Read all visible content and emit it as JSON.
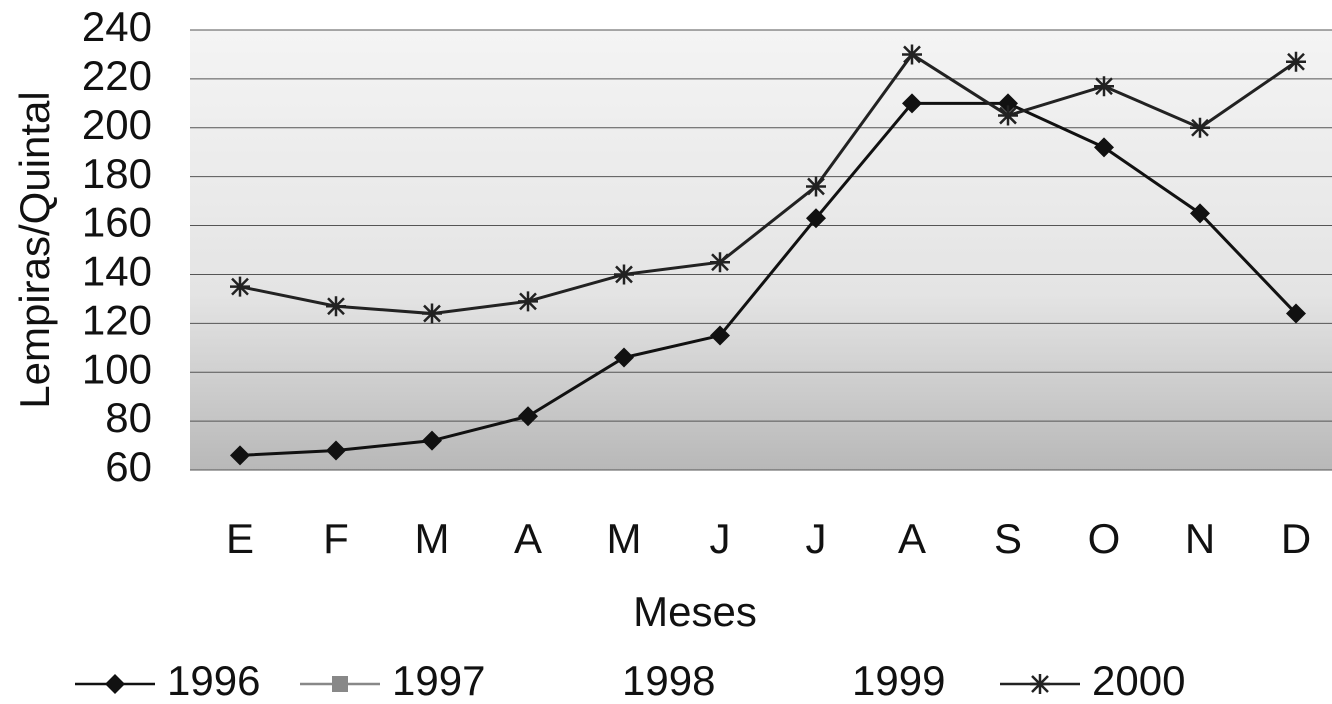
{
  "chart_data": {
    "type": "line",
    "y_label": "Lempiras/Quintal",
    "x_label": "Meses",
    "categories": [
      "E",
      "F",
      "M",
      "A",
      "M",
      "J",
      "J",
      "A",
      "S",
      "O",
      "N",
      "D"
    ],
    "series": [
      {
        "name": "1996",
        "color": "#111111",
        "marker": "diamond",
        "values": [
          66,
          68,
          72,
          82,
          106,
          115,
          163,
          210,
          210,
          192,
          165,
          124
        ]
      },
      {
        "name": "1997",
        "color": "#888888",
        "marker": "square",
        "values": [
          null,
          null,
          null,
          null,
          null,
          null,
          null,
          null,
          null,
          null,
          null,
          null
        ]
      },
      {
        "name": "1998",
        "color": "#ffffff",
        "marker": "none",
        "values": [
          null,
          null,
          null,
          null,
          null,
          null,
          null,
          null,
          null,
          null,
          null,
          null
        ]
      },
      {
        "name": "1999",
        "color": "#ffffff",
        "marker": "none",
        "values": [
          null,
          null,
          null,
          null,
          null,
          null,
          null,
          null,
          null,
          null,
          null,
          null
        ]
      },
      {
        "name": "2000",
        "color": "#222222",
        "marker": "star",
        "values": [
          135,
          127,
          124,
          129,
          140,
          145,
          176,
          230,
          205,
          217,
          200,
          227
        ]
      }
    ],
    "ylim": [
      60,
      240
    ],
    "yticks": [
      60,
      80,
      100,
      120,
      140,
      160,
      180,
      200,
      220,
      240
    ],
    "grid": true,
    "legend": "bottom"
  }
}
